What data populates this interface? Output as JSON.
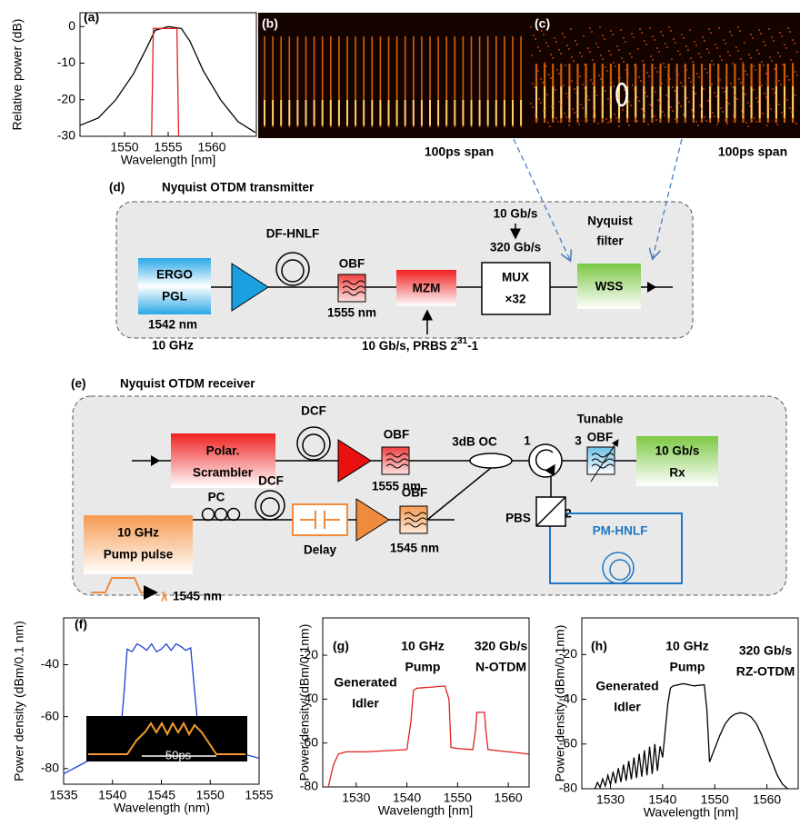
{
  "chart_data": [
    {
      "type": "line",
      "label": "(a)",
      "ylabel": "Relative power (dB)",
      "xlabel": "Wavelength [nm]",
      "xlim": [
        1544.9,
        1565.1
      ],
      "ylim": [
        -30,
        3.8
      ],
      "xticks": [
        1550,
        1555,
        1560
      ],
      "yticks": [
        0,
        -10,
        -20,
        -30
      ],
      "series": [
        {
          "color": "#000000",
          "x": [
            1544.9,
            1547,
            1549,
            1551,
            1552.5,
            1553.5,
            1555,
            1556.5,
            1557.5,
            1559,
            1561,
            1563,
            1565
          ],
          "values": [
            -27,
            -25,
            -20,
            -13,
            -6,
            -1,
            0,
            -0.5,
            -4,
            -12,
            -20,
            -26,
            -29
          ]
        },
        {
          "color": "#e02020",
          "x": [
            1553.1,
            1553.3,
            1556,
            1556.2
          ],
          "values": [
            -30,
            -0.5,
            -0.5,
            -30
          ]
        }
      ]
    },
    {
      "type": "line",
      "label": "(f)",
      "ylabel": "Power density (dBm/0.1 nm)",
      "xlabel": "Wavelength (nm)",
      "inset_label": "50ps",
      "xlim": [
        1535,
        1555
      ],
      "ylim": [
        -86,
        -22
      ],
      "xticks": [
        1535,
        1540,
        1545,
        1550,
        1555
      ],
      "yticks": [
        -40,
        -60,
        -80
      ],
      "series": [
        {
          "color": "#1f3fd0",
          "x": [
            1535,
            1537,
            1539,
            1540,
            1540.8,
            1541.2,
            1541.5,
            1542,
            1542.5,
            1543,
            1543.5,
            1544,
            1544.5,
            1545,
            1545.5,
            1546,
            1546.5,
            1547,
            1547.5,
            1548,
            1548.4,
            1548.8,
            1549.5,
            1551,
            1553,
            1555
          ],
          "values": [
            -82,
            -78,
            -74,
            -72,
            -68,
            -50,
            -34,
            -35,
            -32,
            -33,
            -34.5,
            -32,
            -35,
            -34,
            -32,
            -34.5,
            -32,
            -33,
            -34.5,
            -33.5,
            -50,
            -66,
            -69,
            -71,
            -74,
            -76
          ]
        }
      ]
    },
    {
      "type": "line",
      "label": "(g)",
      "ylabel": "Power density (dBm/0.1nm)",
      "xlabel": "Wavelength [nm]",
      "annotations": [
        "10 GHz",
        "Pump",
        "320 Gb/s",
        "N-OTDM",
        "Generated",
        "Idler"
      ],
      "xlim": [
        1523.4,
        1564.1
      ],
      "ylim": [
        -80,
        -3
      ],
      "xticks": [
        1530,
        1540,
        1550,
        1560
      ],
      "yticks": [
        -20,
        -40,
        -60,
        -80
      ],
      "series": [
        {
          "color": "#e02020",
          "x": [
            1524.5,
            1525.5,
            1526.5,
            1528,
            1532,
            1536,
            1540,
            1540.8,
            1541.3,
            1542,
            1545,
            1547.5,
            1548.3,
            1548.7,
            1550,
            1553,
            1553.5,
            1553.8,
            1555.3,
            1555.6,
            1556,
            1560,
            1564
          ],
          "values": [
            -80,
            -70,
            -65,
            -64,
            -64,
            -63.5,
            -63,
            -50,
            -36,
            -35,
            -34.5,
            -34,
            -40,
            -62,
            -62.5,
            -63,
            -55,
            -46,
            -46,
            -55,
            -63,
            -64,
            -65
          ]
        }
      ]
    },
    {
      "type": "line",
      "label": "(h)",
      "ylabel": "Power density (dBm/0.1nm)",
      "xlabel": "Wavelength [nm]",
      "annotations": [
        "10 GHz",
        "Pump",
        "320 Gb/s",
        "RZ-OTDM",
        "Generated",
        "Idler"
      ],
      "xlim": [
        1524.5,
        1566
      ],
      "ylim": [
        -80,
        -3.6
      ],
      "xticks": [
        1530,
        1540,
        1550,
        1560
      ],
      "yticks": [
        -20,
        -40,
        -60,
        -80
      ],
      "series": [
        {
          "color": "#000000",
          "x": [
            1527,
            1527.5,
            1528,
            1528.5,
            1529,
            1529.5,
            1530,
            1530.5,
            1531,
            1531.5,
            1532,
            1532.5,
            1533,
            1533.5,
            1534,
            1534.5,
            1535,
            1535.5,
            1536,
            1536.5,
            1537,
            1537.5,
            1538,
            1538.5,
            1539,
            1539.5,
            1540,
            1541,
            1541.5,
            1542,
            1544,
            1546,
            1548,
            1548.5,
            1549,
            1550,
            1551,
            1552,
            1553,
            1554,
            1555,
            1556,
            1557,
            1558,
            1559,
            1560,
            1561,
            1562,
            1563,
            1564
          ],
          "values": [
            -80,
            -77.2,
            -79.4,
            -75.6,
            -78.8,
            -74,
            -78.2,
            -72.4,
            -77.6,
            -70.8,
            -77,
            -69.2,
            -76.4,
            -67.6,
            -75.8,
            -66,
            -75.2,
            -64.4,
            -74.6,
            -62.8,
            -74,
            -61.2,
            -73.4,
            -60,
            -72,
            -61,
            -66,
            -42,
            -35,
            -34,
            -33,
            -34,
            -33.5,
            -45,
            -68,
            -62,
            -56,
            -51,
            -48,
            -46.5,
            -46,
            -46.5,
            -48,
            -51,
            -56,
            -62,
            -68,
            -74,
            -78,
            -80
          ]
        }
      ]
    }
  ],
  "images": [
    {
      "label": "(b)",
      "caption": "100ps span"
    },
    {
      "label": "(c)",
      "caption": "100ps span"
    }
  ],
  "transmitter": {
    "label": "(d)",
    "title": "Nyquist OTDM transmitter",
    "source": [
      "ERGO",
      "PGL"
    ],
    "source_specs": [
      "1542 nm",
      "10 GHz"
    ],
    "fiber": "DF-HNLF",
    "obf": "OBF",
    "obf_wavelength": "1555 nm",
    "modulator": "MZM",
    "drive": {
      "text": "10 Gb/s, PRBS 2",
      "sup": "31",
      "tail": "-1"
    },
    "rates": [
      "10 Gb/s",
      "320 Gb/s"
    ],
    "mux": "MUX",
    "mux_factor": "×32",
    "filter_label": [
      "Nyquist",
      "filter"
    ],
    "wss": "WSS"
  },
  "receiver": {
    "label": "(e)",
    "title": "Nyquist OTDM receiver",
    "dcf": "DCF",
    "scrambler": [
      "Polar.",
      "Scrambler"
    ],
    "obf": "OBF",
    "obf_wavelength": "1555 nm",
    "coupler": "3dB OC",
    "ports": [
      "1",
      "3",
      "2"
    ],
    "tunable_obf": [
      "Tunable",
      "OBF"
    ],
    "rx": [
      "10 Gb/s",
      "Rx"
    ],
    "pbs": "PBS",
    "pm_hnlf": "PM-HNLF",
    "pump": [
      "10 GHz",
      "Pump pulse"
    ],
    "pc": "PC",
    "dcf2": "DCF",
    "delay": "Delay",
    "obf2": "OBF",
    "obf2_wavelength": "1545 nm",
    "lambda": "λ",
    "pump_wavelength": "1545 nm"
  }
}
